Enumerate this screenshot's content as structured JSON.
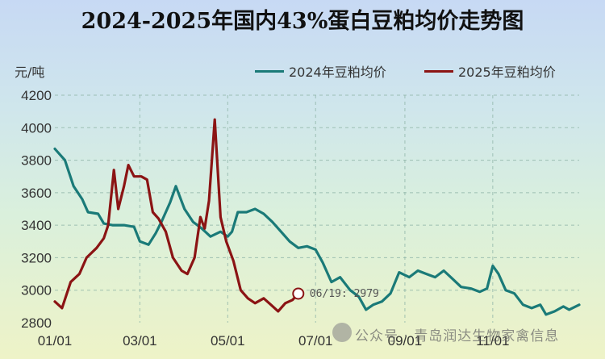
{
  "chart_data": {
    "type": "line",
    "title": "2024-2025年国内43%蛋白豆粕均价走势图",
    "ylabel": "元/吨",
    "ylim": [
      2800,
      4200
    ],
    "yticks": [
      "4200",
      "4000",
      "3800",
      "3600",
      "3400",
      "3200",
      "3000",
      "2800"
    ],
    "xlim": [
      "01/01",
      "12/31"
    ],
    "xticks": [
      {
        "date": "01/01",
        "label": "01/01"
      },
      {
        "date": "03/01",
        "label": "03/01"
      },
      {
        "date": "05/01",
        "label": "05/01"
      },
      {
        "date": "07/01",
        "label": "07/01"
      },
      {
        "date": "09/01",
        "label": "09/01"
      },
      {
        "date": "11/01",
        "label": "11/01"
      }
    ],
    "grid": true,
    "legend_position": "top-right",
    "series": [
      {
        "name": "2024年豆粕均价",
        "color": "#1a7a78",
        "points": [
          [
            "01/01",
            3870
          ],
          [
            "01/08",
            3800
          ],
          [
            "01/14",
            3640
          ],
          [
            "01/20",
            3560
          ],
          [
            "01/24",
            3480
          ],
          [
            "01/31",
            3470
          ],
          [
            "02/04",
            3410
          ],
          [
            "02/10",
            3400
          ],
          [
            "02/18",
            3400
          ],
          [
            "02/25",
            3390
          ],
          [
            "03/01",
            3300
          ],
          [
            "03/07",
            3280
          ],
          [
            "03/12",
            3350
          ],
          [
            "03/16",
            3420
          ],
          [
            "03/22",
            3540
          ],
          [
            "03/26",
            3640
          ],
          [
            "04/01",
            3500
          ],
          [
            "04/07",
            3420
          ],
          [
            "04/13",
            3380
          ],
          [
            "04/19",
            3330
          ],
          [
            "04/26",
            3360
          ],
          [
            "05/01",
            3330
          ],
          [
            "05/04",
            3360
          ],
          [
            "05/08",
            3480
          ],
          [
            "05/14",
            3480
          ],
          [
            "05/20",
            3500
          ],
          [
            "05/26",
            3470
          ],
          [
            "06/01",
            3420
          ],
          [
            "06/07",
            3360
          ],
          [
            "06/13",
            3300
          ],
          [
            "06/19",
            3260
          ],
          [
            "06/25",
            3270
          ],
          [
            "07/01",
            3250
          ],
          [
            "07/06",
            3170
          ],
          [
            "07/12",
            3050
          ],
          [
            "07/18",
            3080
          ],
          [
            "07/25",
            3000
          ],
          [
            "07/31",
            2960
          ],
          [
            "08/05",
            2880
          ],
          [
            "08/10",
            2910
          ],
          [
            "08/16",
            2930
          ],
          [
            "08/22",
            2980
          ],
          [
            "08/28",
            3110
          ],
          [
            "09/04",
            3080
          ],
          [
            "09/10",
            3120
          ],
          [
            "09/16",
            3100
          ],
          [
            "09/22",
            3080
          ],
          [
            "09/28",
            3120
          ],
          [
            "10/04",
            3070
          ],
          [
            "10/10",
            3020
          ],
          [
            "10/17",
            3010
          ],
          [
            "10/23",
            2990
          ],
          [
            "10/28",
            3010
          ],
          [
            "11/01",
            3150
          ],
          [
            "11/05",
            3100
          ],
          [
            "11/10",
            3000
          ],
          [
            "11/16",
            2980
          ],
          [
            "11/22",
            2910
          ],
          [
            "11/28",
            2890
          ],
          [
            "12/04",
            2910
          ],
          [
            "12/08",
            2850
          ],
          [
            "12/14",
            2870
          ],
          [
            "12/20",
            2900
          ],
          [
            "12/24",
            2880
          ],
          [
            "12/31",
            2910
          ]
        ]
      },
      {
        "name": "2025年豆粕均价",
        "color": "#8b1414",
        "points": [
          [
            "01/01",
            2930
          ],
          [
            "01/06",
            2890
          ],
          [
            "01/12",
            3050
          ],
          [
            "01/18",
            3100
          ],
          [
            "01/23",
            3200
          ],
          [
            "01/30",
            3260
          ],
          [
            "02/04",
            3320
          ],
          [
            "02/07",
            3400
          ],
          [
            "02/11",
            3740
          ],
          [
            "02/14",
            3500
          ],
          [
            "02/18",
            3640
          ],
          [
            "02/21",
            3770
          ],
          [
            "02/25",
            3700
          ],
          [
            "03/02",
            3700
          ],
          [
            "03/06",
            3680
          ],
          [
            "03/10",
            3480
          ],
          [
            "03/14",
            3440
          ],
          [
            "03/19",
            3360
          ],
          [
            "03/24",
            3200
          ],
          [
            "03/30",
            3120
          ],
          [
            "04/03",
            3100
          ],
          [
            "04/08",
            3200
          ],
          [
            "04/12",
            3450
          ],
          [
            "04/15",
            3380
          ],
          [
            "04/18",
            3550
          ],
          [
            "04/22",
            4050
          ],
          [
            "04/26",
            3450
          ],
          [
            "04/30",
            3300
          ],
          [
            "05/05",
            3180
          ],
          [
            "05/10",
            3000
          ],
          [
            "05/15",
            2950
          ],
          [
            "05/20",
            2920
          ],
          [
            "05/26",
            2950
          ],
          [
            "05/31",
            2910
          ],
          [
            "06/05",
            2870
          ],
          [
            "06/10",
            2920
          ],
          [
            "06/15",
            2940
          ],
          [
            "06/19",
            2979
          ]
        ]
      }
    ],
    "annotations": [
      {
        "series": "2025年豆粕均价",
        "date": "06/19",
        "value": 2979,
        "label": "06/19: 2979"
      }
    ]
  },
  "legend": {
    "items": [
      "2024年豆粕均价",
      "2025年豆粕均价"
    ]
  },
  "watermark": {
    "text": "公众号 · 青岛润达生物家禽信息"
  }
}
